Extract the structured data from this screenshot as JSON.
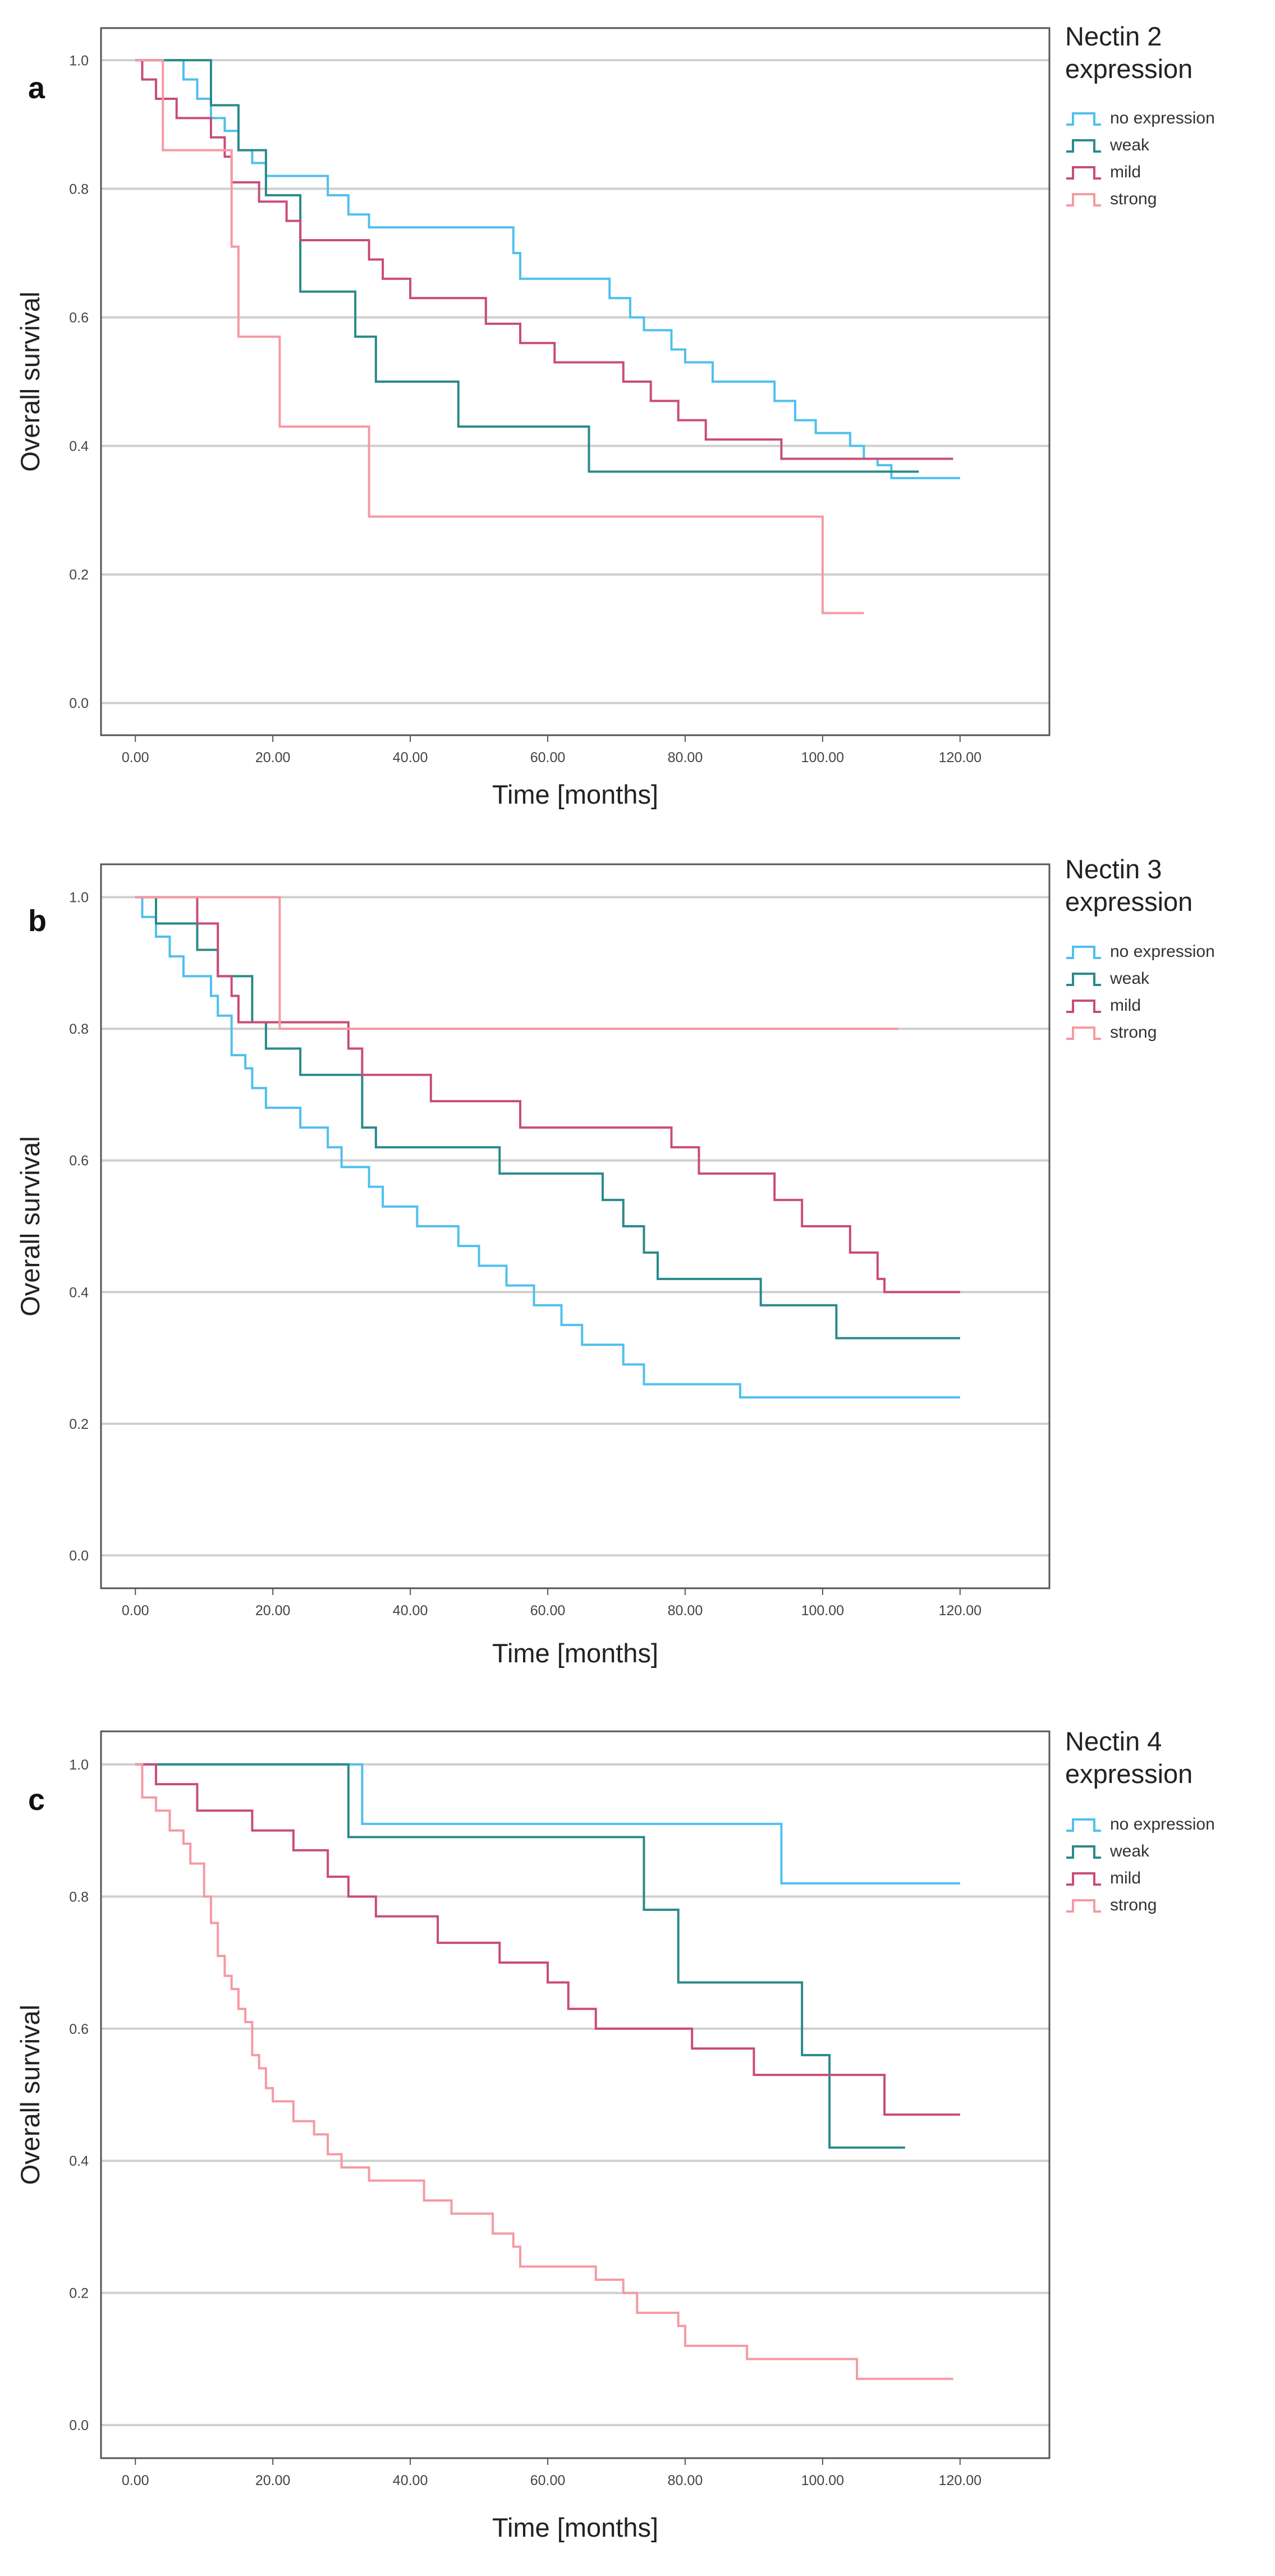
{
  "chart_data": [
    {
      "panel_label": "a",
      "type": "line",
      "title": "Nectin 2\nexpression",
      "title_lines": [
        "Nectin 2",
        "expression"
      ],
      "xlabel": "Time [months]",
      "ylabel": "Overall survival",
      "xlim": [
        -5,
        133
      ],
      "ylim": [
        -0.05,
        1.05
      ],
      "xticks": [
        "0.00",
        "20.00",
        "40.00",
        "60.00",
        "80.00",
        "100.00",
        "120.00"
      ],
      "yticks": [
        "0.0",
        "0.2",
        "0.4",
        "0.6",
        "0.8",
        "1.0"
      ],
      "xtick_values": [
        0,
        20,
        40,
        60,
        80,
        100,
        120
      ],
      "ytick_values": [
        0,
        0.2,
        0.4,
        0.6,
        0.8,
        1.0
      ],
      "grid": true,
      "legend_position": "right",
      "series": [
        {
          "name": "no expression",
          "color": "#4fc0ee",
          "points": [
            [
              0,
              1.0
            ],
            [
              7,
              0.97
            ],
            [
              9,
              0.94
            ],
            [
              11,
              0.91
            ],
            [
              13,
              0.89
            ],
            [
              15,
              0.86
            ],
            [
              17,
              0.84
            ],
            [
              19,
              0.82
            ],
            [
              28,
              0.79
            ],
            [
              31,
              0.76
            ],
            [
              34,
              0.74
            ],
            [
              55,
              0.7
            ],
            [
              56,
              0.66
            ],
            [
              69,
              0.63
            ],
            [
              72,
              0.6
            ],
            [
              74,
              0.58
            ],
            [
              78,
              0.55
            ],
            [
              80,
              0.53
            ],
            [
              84,
              0.5
            ],
            [
              93,
              0.47
            ],
            [
              96,
              0.44
            ],
            [
              99,
              0.42
            ],
            [
              104,
              0.4
            ],
            [
              106,
              0.38
            ],
            [
              108,
              0.37
            ],
            [
              110,
              0.35
            ],
            [
              120,
              0.35
            ]
          ]
        },
        {
          "name": "weak",
          "color": "#2a8a8a",
          "points": [
            [
              0,
              1.0
            ],
            [
              11,
              0.93
            ],
            [
              15,
              0.86
            ],
            [
              19,
              0.79
            ],
            [
              24,
              0.64
            ],
            [
              32,
              0.57
            ],
            [
              35,
              0.5
            ],
            [
              47,
              0.43
            ],
            [
              66,
              0.36
            ],
            [
              114,
              0.36
            ]
          ]
        },
        {
          "name": "mild",
          "color": "#c94c7a",
          "points": [
            [
              0,
              1.0
            ],
            [
              1,
              0.97
            ],
            [
              3,
              0.94
            ],
            [
              6,
              0.91
            ],
            [
              11,
              0.88
            ],
            [
              13,
              0.85
            ],
            [
              14,
              0.81
            ],
            [
              18,
              0.78
            ],
            [
              22,
              0.75
            ],
            [
              24,
              0.72
            ],
            [
              34,
              0.69
            ],
            [
              36,
              0.66
            ],
            [
              40,
              0.63
            ],
            [
              51,
              0.59
            ],
            [
              56,
              0.56
            ],
            [
              61,
              0.53
            ],
            [
              71,
              0.5
            ],
            [
              75,
              0.47
            ],
            [
              79,
              0.44
            ],
            [
              83,
              0.41
            ],
            [
              94,
              0.38
            ],
            [
              119,
              0.38
            ]
          ]
        },
        {
          "name": "strong",
          "color": "#f59aa2",
          "points": [
            [
              0,
              1.0
            ],
            [
              4,
              0.86
            ],
            [
              14,
              0.71
            ],
            [
              15,
              0.57
            ],
            [
              21,
              0.43
            ],
            [
              34,
              0.29
            ],
            [
              100,
              0.14
            ],
            [
              106,
              0.14
            ]
          ]
        }
      ]
    },
    {
      "panel_label": "b",
      "type": "line",
      "title": "Nectin 3\nexpression",
      "title_lines": [
        "Nectin 3",
        "expression"
      ],
      "xlabel": "Time [months]",
      "ylabel": "Overall survival",
      "xlim": [
        -5,
        133
      ],
      "ylim": [
        -0.05,
        1.05
      ],
      "xticks": [
        "0.00",
        "20.00",
        "40.00",
        "60.00",
        "80.00",
        "100.00",
        "120.00"
      ],
      "yticks": [
        "0.0",
        "0.2",
        "0.4",
        "0.6",
        "0.8",
        "1.0"
      ],
      "xtick_values": [
        0,
        20,
        40,
        60,
        80,
        100,
        120
      ],
      "ytick_values": [
        0,
        0.2,
        0.4,
        0.6,
        0.8,
        1.0
      ],
      "grid": true,
      "legend_position": "right",
      "series": [
        {
          "name": "no expression",
          "color": "#4fc0ee",
          "points": [
            [
              0,
              1.0
            ],
            [
              1,
              0.97
            ],
            [
              3,
              0.94
            ],
            [
              5,
              0.91
            ],
            [
              7,
              0.88
            ],
            [
              11,
              0.85
            ],
            [
              12,
              0.82
            ],
            [
              14,
              0.76
            ],
            [
              16,
              0.74
            ],
            [
              17,
              0.71
            ],
            [
              19,
              0.68
            ],
            [
              24,
              0.65
            ],
            [
              28,
              0.62
            ],
            [
              30,
              0.59
            ],
            [
              34,
              0.56
            ],
            [
              36,
              0.53
            ],
            [
              41,
              0.5
            ],
            [
              47,
              0.47
            ],
            [
              50,
              0.44
            ],
            [
              54,
              0.41
            ],
            [
              58,
              0.38
            ],
            [
              62,
              0.35
            ],
            [
              65,
              0.32
            ],
            [
              71,
              0.29
            ],
            [
              74,
              0.26
            ],
            [
              88,
              0.24
            ],
            [
              120,
              0.24
            ]
          ]
        },
        {
          "name": "weak",
          "color": "#2a8a8a",
          "points": [
            [
              0,
              1.0
            ],
            [
              3,
              0.96
            ],
            [
              9,
              0.92
            ],
            [
              12,
              0.88
            ],
            [
              17,
              0.81
            ],
            [
              19,
              0.77
            ],
            [
              24,
              0.73
            ],
            [
              33,
              0.65
            ],
            [
              35,
              0.62
            ],
            [
              53,
              0.58
            ],
            [
              68,
              0.54
            ],
            [
              71,
              0.5
            ],
            [
              74,
              0.46
            ],
            [
              76,
              0.42
            ],
            [
              91,
              0.38
            ],
            [
              102,
              0.33
            ],
            [
              120,
              0.33
            ]
          ]
        },
        {
          "name": "mild",
          "color": "#c94c7a",
          "points": [
            [
              0,
              1.0
            ],
            [
              9,
              0.96
            ],
            [
              12,
              0.88
            ],
            [
              14,
              0.85
            ],
            [
              15,
              0.81
            ],
            [
              31,
              0.77
            ],
            [
              33,
              0.73
            ],
            [
              43,
              0.69
            ],
            [
              56,
              0.65
            ],
            [
              78,
              0.62
            ],
            [
              82,
              0.58
            ],
            [
              93,
              0.54
            ],
            [
              97,
              0.5
            ],
            [
              104,
              0.46
            ],
            [
              108,
              0.42
            ],
            [
              109,
              0.4
            ],
            [
              120,
              0.4
            ]
          ]
        },
        {
          "name": "strong",
          "color": "#f59aa2",
          "points": [
            [
              0,
              1.0
            ],
            [
              21,
              0.8
            ],
            [
              111,
              0.8
            ]
          ]
        }
      ]
    },
    {
      "panel_label": "c",
      "type": "line",
      "title": "Nectin 4\nexpression",
      "title_lines": [
        "Nectin 4",
        "expression"
      ],
      "xlabel": "Time [months]",
      "ylabel": "Overall survival",
      "xlim": [
        -5,
        133
      ],
      "ylim": [
        -0.05,
        1.05
      ],
      "xticks": [
        "0.00",
        "20.00",
        "40.00",
        "60.00",
        "80.00",
        "100.00",
        "120.00"
      ],
      "yticks": [
        "0.0",
        "0.2",
        "0.4",
        "0.6",
        "0.8",
        "1.0"
      ],
      "xtick_values": [
        0,
        20,
        40,
        60,
        80,
        100,
        120
      ],
      "ytick_values": [
        0,
        0.2,
        0.4,
        0.6,
        0.8,
        1.0
      ],
      "grid": true,
      "legend_position": "right",
      "series": [
        {
          "name": "no expression",
          "color": "#4fc0ee",
          "points": [
            [
              0,
              1.0
            ],
            [
              33,
              0.91
            ],
            [
              94,
              0.82
            ],
            [
              120,
              0.82
            ]
          ]
        },
        {
          "name": "weak",
          "color": "#2a8a8a",
          "points": [
            [
              0,
              1.0
            ],
            [
              31,
              0.89
            ],
            [
              74,
              0.78
            ],
            [
              79,
              0.67
            ],
            [
              97,
              0.56
            ],
            [
              101,
              0.42
            ],
            [
              112,
              0.42
            ]
          ]
        },
        {
          "name": "mild",
          "color": "#c94c7a",
          "points": [
            [
              0,
              1.0
            ],
            [
              3,
              0.97
            ],
            [
              9,
              0.93
            ],
            [
              17,
              0.9
            ],
            [
              23,
              0.87
            ],
            [
              28,
              0.83
            ],
            [
              31,
              0.8
            ],
            [
              35,
              0.77
            ],
            [
              44,
              0.73
            ],
            [
              53,
              0.7
            ],
            [
              60,
              0.67
            ],
            [
              63,
              0.63
            ],
            [
              67,
              0.6
            ],
            [
              81,
              0.57
            ],
            [
              90,
              0.53
            ],
            [
              109,
              0.47
            ],
            [
              120,
              0.47
            ]
          ]
        },
        {
          "name": "strong",
          "color": "#f59aa2",
          "points": [
            [
              0,
              1.0
            ],
            [
              1,
              0.95
            ],
            [
              3,
              0.93
            ],
            [
              5,
              0.9
            ],
            [
              7,
              0.88
            ],
            [
              8,
              0.85
            ],
            [
              10,
              0.8
            ],
            [
              11,
              0.76
            ],
            [
              12,
              0.71
            ],
            [
              13,
              0.68
            ],
            [
              14,
              0.66
            ],
            [
              15,
              0.63
            ],
            [
              16,
              0.61
            ],
            [
              17,
              0.56
            ],
            [
              18,
              0.54
            ],
            [
              19,
              0.51
            ],
            [
              20,
              0.49
            ],
            [
              23,
              0.46
            ],
            [
              26,
              0.44
            ],
            [
              28,
              0.41
            ],
            [
              30,
              0.39
            ],
            [
              34,
              0.37
            ],
            [
              42,
              0.34
            ],
            [
              46,
              0.32
            ],
            [
              52,
              0.29
            ],
            [
              55,
              0.27
            ],
            [
              56,
              0.24
            ],
            [
              67,
              0.22
            ],
            [
              71,
              0.2
            ],
            [
              73,
              0.17
            ],
            [
              79,
              0.15
            ],
            [
              80,
              0.12
            ],
            [
              89,
              0.1
            ],
            [
              105,
              0.07
            ],
            [
              119,
              0.07
            ]
          ]
        }
      ]
    }
  ]
}
